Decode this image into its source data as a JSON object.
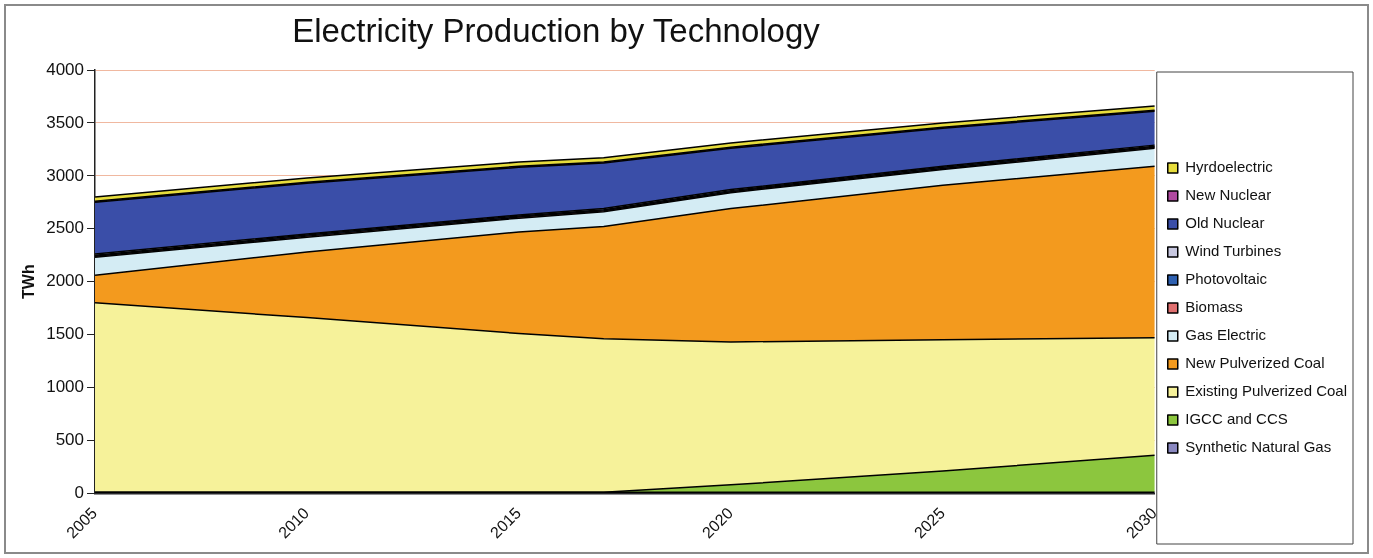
{
  "chart_data": {
    "type": "area",
    "stacked": true,
    "title": "Electricity Production by Technology",
    "ylabel": "TWh",
    "x": [
      2005,
      2010,
      2015,
      2017,
      2020,
      2025,
      2030
    ],
    "xlim": [
      2005,
      2030
    ],
    "xticks": [
      2005,
      2010,
      2015,
      2020,
      2025,
      2030
    ],
    "ylim": [
      0,
      4000
    ],
    "yticks": [
      0,
      500,
      1000,
      1500,
      2000,
      2500,
      3000,
      3500,
      4000
    ],
    "grid": "y",
    "legend": "right",
    "marker": "none",
    "series": [
      {
        "name": "Synthetic Natural Gas",
        "color": "#8a88c0",
        "values": [
          10,
          10,
          10,
          10,
          10,
          10,
          10
        ]
      },
      {
        "name": "IGCC and CCS",
        "color": "#8cc63e",
        "values": [
          0,
          0,
          0,
          0,
          70,
          200,
          350
        ]
      },
      {
        "name": "Existing Pulverized Coal",
        "color": "#f6f29a",
        "values": [
          1790,
          1650,
          1500,
          1450,
          1350,
          1240,
          1110
        ]
      },
      {
        "name": "New Pulverized Coal",
        "color": "#f39a1e",
        "values": [
          260,
          620,
          960,
          1060,
          1260,
          1460,
          1620
        ]
      },
      {
        "name": "Gas Electric",
        "color": "#d4ecf4",
        "values": [
          170,
          140,
          130,
          140,
          150,
          150,
          170
        ]
      },
      {
        "name": "Biomass",
        "color": "#e07070",
        "values": [
          10,
          10,
          10,
          10,
          10,
          10,
          10
        ]
      },
      {
        "name": "Photovoltaic",
        "color": "#2e60b0",
        "values": [
          10,
          10,
          10,
          10,
          10,
          10,
          10
        ]
      },
      {
        "name": "Wind Turbines",
        "color": "#c8c8e0",
        "values": [
          10,
          10,
          10,
          10,
          10,
          10,
          10
        ]
      },
      {
        "name": "Old Nuclear",
        "color": "#3a4ea8",
        "values": [
          490,
          480,
          450,
          430,
          390,
          360,
          320
        ]
      },
      {
        "name": "New Nuclear",
        "color": "#b04aa0",
        "values": [
          10,
          10,
          10,
          10,
          10,
          10,
          10
        ]
      },
      {
        "name": "Hyrdoelectric",
        "color": "#e6dc3c",
        "values": [
          40,
          40,
          40,
          40,
          40,
          40,
          40
        ]
      }
    ]
  }
}
